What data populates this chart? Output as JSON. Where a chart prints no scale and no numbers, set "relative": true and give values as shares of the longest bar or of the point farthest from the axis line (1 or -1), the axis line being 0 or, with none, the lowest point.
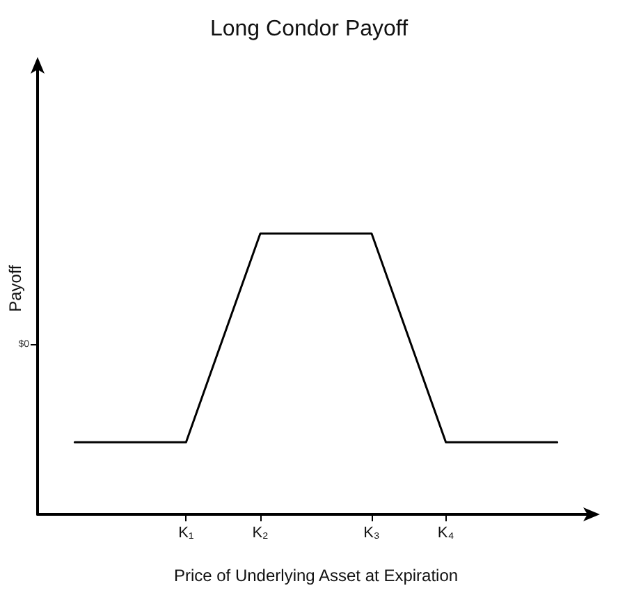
{
  "chart_data": {
    "type": "line",
    "title": "Long Condor Payoff",
    "xlabel": "Price of Underlying Asset at Expiration",
    "ylabel": "Payoff",
    "relative": true,
    "categories": [
      null,
      null,
      null,
      null,
      "K₁",
      null,
      "K₂",
      null,
      null,
      "K₃",
      null,
      "K₄",
      null,
      null,
      null,
      null
    ],
    "series": [
      {
        "color": "#000000",
        "values": [
          null,
          0.257,
          0.257,
          0.257,
          0.257,
          0.629,
          1,
          1,
          1,
          1,
          0.629,
          0.257,
          0.257,
          0.257,
          0.257,
          null
        ]
      }
    ],
    "annotations": [
      "$0"
    ],
    "marker": "none",
    "line_style": "solid"
  }
}
